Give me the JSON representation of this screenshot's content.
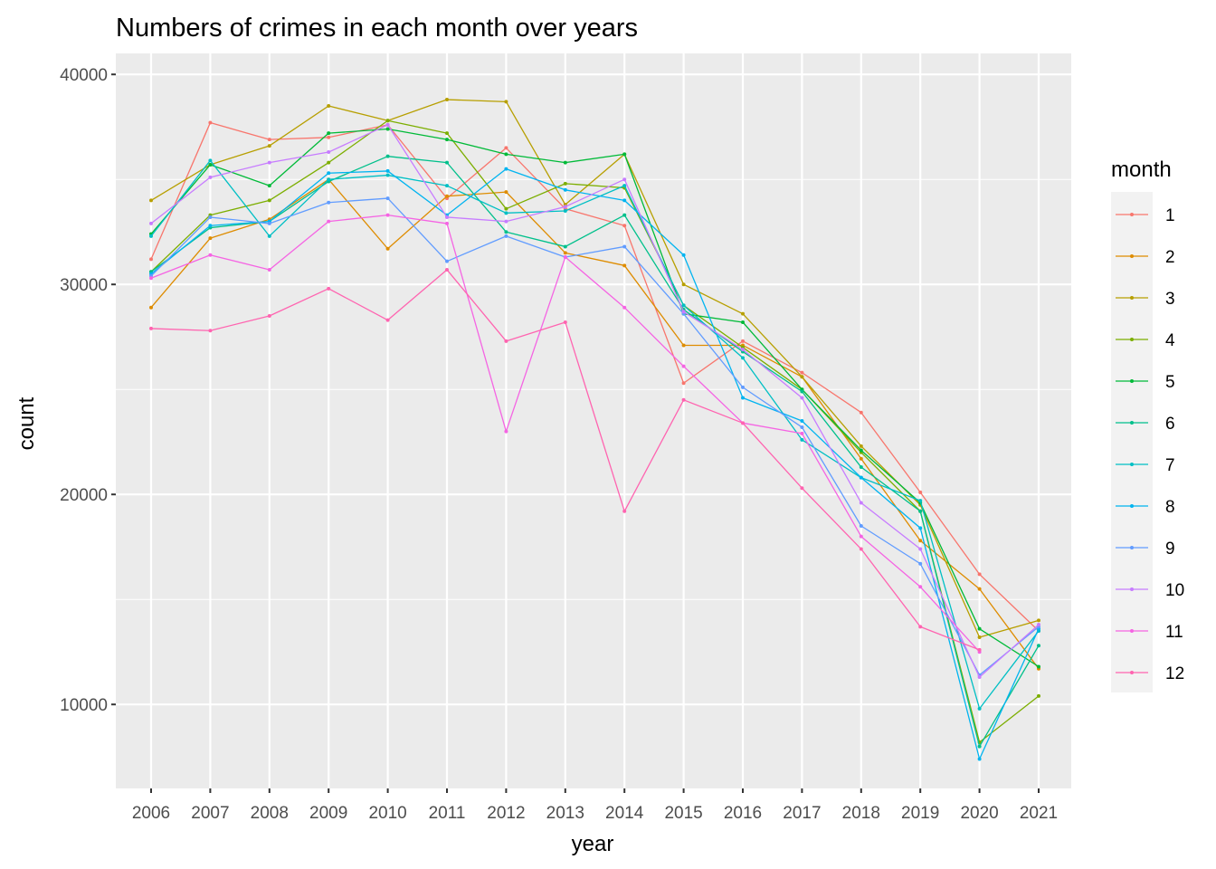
{
  "chart_data": {
    "type": "line",
    "title": "Numbers of crimes in each month over years",
    "xlabel": "year",
    "ylabel": "count",
    "x": [
      2006,
      2007,
      2008,
      2009,
      2010,
      2011,
      2012,
      2013,
      2014,
      2015,
      2016,
      2017,
      2018,
      2019,
      2020,
      2021
    ],
    "x_tick_labels": [
      "2006",
      "2007",
      "2008",
      "2009",
      "2010",
      "2011",
      "2012",
      "2013",
      "2014",
      "2015",
      "2016",
      "2017",
      "2018",
      "2019",
      "2020",
      "2021"
    ],
    "ylim": [
      6000,
      41000
    ],
    "y_ticks": [
      10000,
      20000,
      30000,
      40000
    ],
    "y_tick_labels": [
      "10000",
      "20000",
      "30000",
      "40000"
    ],
    "grid": true,
    "legend": {
      "title": "month",
      "position": "right"
    },
    "series": [
      {
        "name": "1",
        "color": "#F8766D",
        "values": [
          31200,
          37700,
          36900,
          37000,
          37600,
          34100,
          36500,
          33600,
          32800,
          25300,
          27300,
          25800,
          23900,
          20100,
          16200,
          13500
        ]
      },
      {
        "name": "2",
        "color": "#DE8C00",
        "values": [
          28900,
          32200,
          33100,
          35000,
          31700,
          34200,
          34400,
          31500,
          30900,
          27100,
          27100,
          25600,
          21700,
          17800,
          15500,
          11700
        ]
      },
      {
        "name": "3",
        "color": "#B79F00",
        "values": [
          34000,
          35700,
          36600,
          38500,
          37800,
          38800,
          38700,
          33800,
          36200,
          30000,
          28600,
          25600,
          22300,
          19500,
          13200,
          14000
        ]
      },
      {
        "name": "4",
        "color": "#7CAE00",
        "values": [
          30600,
          33300,
          34000,
          35800,
          37800,
          37200,
          33600,
          34800,
          34600,
          29000,
          27000,
          25000,
          22000,
          19200,
          8200,
          10400
        ]
      },
      {
        "name": "5",
        "color": "#00BA38",
        "values": [
          32400,
          35700,
          34700,
          37200,
          37400,
          36900,
          36200,
          35800,
          36200,
          28600,
          28200,
          25000,
          22100,
          19600,
          13600,
          11800
        ]
      },
      {
        "name": "6",
        "color": "#00C08B",
        "values": [
          30600,
          32700,
          33000,
          34900,
          36100,
          35800,
          32500,
          31800,
          33300,
          28800,
          26800,
          24900,
          21300,
          19200,
          8000,
          12800
        ]
      },
      {
        "name": "7",
        "color": "#00BFC4",
        "values": [
          32300,
          35900,
          32300,
          35000,
          35200,
          34700,
          33400,
          33500,
          34700,
          29000,
          26500,
          22600,
          20800,
          19700,
          9800,
          13500
        ]
      },
      {
        "name": "8",
        "color": "#00B4F0",
        "values": [
          30500,
          32800,
          33000,
          35300,
          35400,
          33300,
          35500,
          34500,
          34000,
          31400,
          24600,
          23500,
          20800,
          18400,
          7400,
          13600
        ]
      },
      {
        "name": "9",
        "color": "#619CFF",
        "values": [
          30400,
          33200,
          32900,
          33900,
          34100,
          31100,
          32300,
          31300,
          31800,
          28600,
          25100,
          23200,
          18500,
          16700,
          11400,
          13700
        ]
      },
      {
        "name": "10",
        "color": "#C77CFF",
        "values": [
          32900,
          35100,
          35800,
          36300,
          37600,
          33200,
          33000,
          33700,
          35000,
          28700,
          26900,
          24600,
          19600,
          17400,
          11300,
          13800
        ]
      },
      {
        "name": "11",
        "color": "#F564E3",
        "values": [
          30300,
          31400,
          30700,
          33000,
          33300,
          32900,
          23000,
          31300,
          28900,
          26100,
          23400,
          22900,
          18000,
          15600,
          12500,
          null
        ]
      },
      {
        "name": "12",
        "color": "#FF64B0",
        "values": [
          27900,
          27800,
          28500,
          29800,
          28300,
          30700,
          27300,
          28200,
          19200,
          24500,
          23400,
          20300,
          17400,
          13700,
          12600,
          null
        ]
      }
    ]
  }
}
